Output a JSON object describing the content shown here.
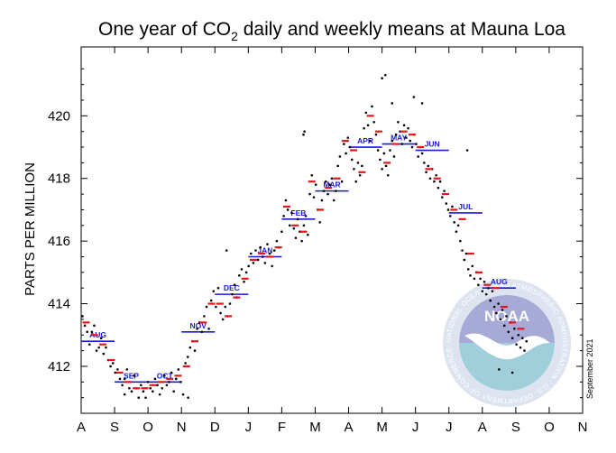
{
  "chart_data": {
    "type": "scatter",
    "title": "One year of CO",
    "title_subscript": "2",
    "title_suffix": " daily and weekly means at Mauna Loa",
    "ylabel": "PARTS PER MILLION",
    "xlabel": "",
    "ylim": [
      410.5,
      422.2
    ],
    "yticks": [
      412,
      414,
      416,
      418,
      420
    ],
    "x_range_months": [
      0,
      15
    ],
    "x_tick_labels": [
      "A",
      "S",
      "O",
      "N",
      "D",
      "J",
      "F",
      "M",
      "A",
      "M",
      "J",
      "J",
      "A",
      "S",
      "O",
      "N"
    ],
    "grid": false,
    "credit": "September 2021",
    "colors": {
      "daily": "#000000",
      "weekly": "#e8141b",
      "monthly": "#1a1adb"
    },
    "logo": {
      "name": "noaa-logo",
      "text": "NOAA",
      "ring_text": "NATIONAL OCEANIC AND ATMOSPHERIC ADMINISTRATION · U.S. DEPARTMENT OF COMMERCE"
    },
    "series": [
      {
        "name": "monthly",
        "style": "blue-horizontal-segment",
        "months": [
          {
            "label": "AUG",
            "x": 0,
            "value": 412.8
          },
          {
            "label": "SEP",
            "x": 1,
            "value": 411.5
          },
          {
            "label": "OCT",
            "x": 2,
            "value": 411.5
          },
          {
            "label": "NOV",
            "x": 3,
            "value": 413.1
          },
          {
            "label": "DEC",
            "x": 4,
            "value": 414.3
          },
          {
            "label": "JAN",
            "x": 5,
            "value": 415.5
          },
          {
            "label": "FEB",
            "x": 6,
            "value": 416.7
          },
          {
            "label": "MAR",
            "x": 7,
            "value": 417.6
          },
          {
            "label": "APR",
            "x": 8,
            "value": 419.0
          },
          {
            "label": "MAY",
            "x": 9,
            "value": 419.1
          },
          {
            "label": "JUN",
            "x": 10,
            "value": 418.9
          },
          {
            "label": "JUL",
            "x": 11,
            "value": 416.9
          },
          {
            "label": "AUG",
            "x": 12,
            "value": 414.5
          }
        ]
      },
      {
        "name": "weekly",
        "style": "red-dash",
        "points": [
          [
            0.15,
            413.4
          ],
          [
            0.4,
            413.0
          ],
          [
            0.65,
            412.7
          ],
          [
            0.9,
            412.2
          ],
          [
            1.15,
            411.8
          ],
          [
            1.4,
            411.5
          ],
          [
            1.65,
            411.3
          ],
          [
            1.9,
            411.3
          ],
          [
            2.15,
            411.4
          ],
          [
            2.4,
            411.5
          ],
          [
            2.65,
            411.6
          ],
          [
            2.9,
            411.7
          ],
          [
            3.15,
            412.0
          ],
          [
            3.4,
            412.8
          ],
          [
            3.65,
            413.4
          ],
          [
            3.9,
            414.0
          ],
          [
            4.15,
            414.0
          ],
          [
            4.4,
            413.6
          ],
          [
            4.65,
            414.2
          ],
          [
            4.9,
            414.8
          ],
          [
            5.15,
            415.4
          ],
          [
            5.4,
            415.6
          ],
          [
            5.65,
            415.5
          ],
          [
            5.9,
            415.8
          ],
          [
            6.15,
            417.1
          ],
          [
            6.4,
            416.5
          ],
          [
            6.65,
            416.3
          ],
          [
            6.9,
            417.9
          ],
          [
            7.15,
            417.0
          ],
          [
            7.4,
            417.7
          ],
          [
            7.65,
            418.0
          ],
          [
            7.9,
            419.2
          ],
          [
            8.15,
            418.9
          ],
          [
            8.4,
            418.2
          ],
          [
            8.65,
            420.0
          ],
          [
            8.9,
            419.5
          ],
          [
            9.15,
            418.5
          ],
          [
            9.4,
            419.1
          ],
          [
            9.65,
            419.5
          ],
          [
            9.9,
            419.4
          ],
          [
            10.15,
            419.0
          ],
          [
            10.4,
            418.3
          ],
          [
            10.65,
            418.0
          ],
          [
            10.9,
            417.5
          ],
          [
            11.15,
            417.0
          ],
          [
            11.4,
            416.7
          ],
          [
            11.65,
            415.6
          ],
          [
            11.9,
            415.0
          ],
          [
            12.15,
            414.6
          ],
          [
            12.4,
            414.5
          ],
          [
            12.65,
            413.9
          ],
          [
            12.9,
            413.4
          ],
          [
            13.15,
            413.2
          ]
        ]
      },
      {
        "name": "daily",
        "style": "black-dot",
        "points": [
          [
            0.04,
            413.6
          ],
          [
            0.11,
            413.3
          ],
          [
            0.18,
            413.1
          ],
          [
            0.25,
            412.7
          ],
          [
            0.32,
            413.1
          ],
          [
            0.39,
            413.3
          ],
          [
            0.46,
            412.5
          ],
          [
            0.53,
            412.6
          ],
          [
            0.6,
            412.9
          ],
          [
            0.67,
            412.4
          ],
          [
            0.74,
            412.6
          ],
          [
            0.81,
            412.2
          ],
          [
            0.88,
            412.0
          ],
          [
            0.95,
            412.1
          ],
          [
            1.02,
            411.8
          ],
          [
            1.09,
            411.9
          ],
          [
            1.16,
            411.6
          ],
          [
            1.23,
            411.4
          ],
          [
            1.3,
            411.6
          ],
          [
            1.37,
            411.9
          ],
          [
            1.44,
            411.3
          ],
          [
            1.51,
            411.2
          ],
          [
            1.58,
            411.7
          ],
          [
            1.65,
            411.3
          ],
          [
            1.72,
            411.0
          ],
          [
            1.79,
            411.4
          ],
          [
            1.86,
            411.2
          ],
          [
            1.93,
            411.0
          ],
          [
            2.0,
            411.5
          ],
          [
            2.07,
            411.3
          ],
          [
            2.14,
            411.2
          ],
          [
            2.21,
            411.6
          ],
          [
            2.28,
            411.4
          ],
          [
            2.35,
            411.1
          ],
          [
            2.42,
            411.3
          ],
          [
            2.49,
            411.7
          ],
          [
            2.56,
            411.4
          ],
          [
            2.63,
            411.5
          ],
          [
            2.7,
            411.8
          ],
          [
            2.77,
            411.2
          ],
          [
            2.84,
            411.6
          ],
          [
            2.91,
            411.9
          ],
          [
            2.98,
            411.5
          ],
          [
            3.05,
            411.1
          ],
          [
            3.12,
            412.1
          ],
          [
            3.19,
            412.3
          ],
          [
            3.26,
            412.6
          ],
          [
            3.33,
            412.8
          ],
          [
            3.4,
            412.5
          ],
          [
            3.47,
            413.2
          ],
          [
            3.54,
            413.4
          ],
          [
            3.61,
            413.1
          ],
          [
            3.68,
            413.6
          ],
          [
            3.75,
            413.9
          ],
          [
            3.82,
            413.2
          ],
          [
            3.89,
            414.1
          ],
          [
            3.96,
            414.4
          ],
          [
            4.03,
            413.9
          ],
          [
            4.1,
            414.5
          ],
          [
            4.17,
            413.7
          ],
          [
            4.24,
            413.5
          ],
          [
            4.31,
            413.9
          ],
          [
            4.38,
            413.6
          ],
          [
            4.45,
            414.0
          ],
          [
            4.52,
            414.3
          ],
          [
            4.59,
            414.6
          ],
          [
            4.66,
            414.2
          ],
          [
            4.73,
            414.9
          ],
          [
            4.8,
            415.1
          ],
          [
            4.87,
            414.7
          ],
          [
            4.94,
            415.0
          ],
          [
            5.01,
            415.2
          ],
          [
            5.08,
            415.6
          ],
          [
            5.15,
            415.3
          ],
          [
            5.22,
            415.7
          ],
          [
            5.29,
            415.4
          ],
          [
            5.36,
            415.8
          ],
          [
            5.43,
            415.5
          ],
          [
            5.5,
            415.3
          ],
          [
            5.57,
            415.9
          ],
          [
            5.64,
            415.6
          ],
          [
            5.71,
            415.2
          ],
          [
            5.78,
            415.7
          ],
          [
            5.85,
            416.0
          ],
          [
            5.92,
            415.8
          ],
          [
            6.0,
            416.3
          ],
          [
            6.06,
            416.8
          ],
          [
            6.12,
            417.3
          ],
          [
            6.18,
            417.0
          ],
          [
            6.24,
            416.5
          ],
          [
            6.3,
            416.9
          ],
          [
            6.36,
            416.4
          ],
          [
            6.42,
            416.1
          ],
          [
            6.48,
            416.7
          ],
          [
            6.54,
            416.3
          ],
          [
            6.6,
            416.0
          ],
          [
            6.66,
            416.5
          ],
          [
            6.72,
            416.8
          ],
          [
            6.78,
            416.2
          ],
          [
            6.84,
            417.5
          ],
          [
            6.9,
            418.1
          ],
          [
            6.96,
            417.4
          ],
          [
            7.02,
            417.8
          ],
          [
            7.08,
            417.0
          ],
          [
            7.14,
            416.6
          ],
          [
            7.2,
            417.3
          ],
          [
            7.26,
            417.6
          ],
          [
            7.32,
            417.9
          ],
          [
            7.38,
            417.5
          ],
          [
            7.44,
            417.8
          ],
          [
            7.5,
            418.0
          ],
          [
            7.56,
            417.3
          ],
          [
            7.62,
            417.6
          ],
          [
            7.68,
            418.4
          ],
          [
            7.74,
            418.7
          ],
          [
            7.8,
            417.9
          ],
          [
            7.86,
            419.1
          ],
          [
            7.92,
            418.8
          ],
          [
            7.98,
            419.3
          ],
          [
            8.04,
            419.0
          ],
          [
            8.1,
            418.6
          ],
          [
            8.16,
            418.3
          ],
          [
            8.22,
            417.9
          ],
          [
            8.28,
            418.5
          ],
          [
            8.34,
            418.1
          ],
          [
            8.4,
            418.4
          ],
          [
            8.46,
            419.6
          ],
          [
            8.52,
            420.1
          ],
          [
            8.58,
            419.7
          ],
          [
            8.64,
            419.2
          ],
          [
            8.7,
            420.3
          ],
          [
            8.76,
            419.8
          ],
          [
            8.82,
            419.4
          ],
          [
            8.88,
            418.9
          ],
          [
            8.94,
            418.6
          ],
          [
            9.0,
            418.3
          ],
          [
            9.06,
            418.8
          ],
          [
            9.12,
            418.4
          ],
          [
            9.18,
            418.1
          ],
          [
            9.24,
            418.9
          ],
          [
            9.3,
            419.2
          ],
          [
            9.36,
            418.7
          ],
          [
            9.42,
            419.4
          ],
          [
            9.48,
            419.8
          ],
          [
            9.54,
            419.5
          ],
          [
            9.6,
            419.1
          ],
          [
            9.66,
            419.7
          ],
          [
            9.72,
            419.3
          ],
          [
            9.78,
            419.6
          ],
          [
            9.84,
            419.2
          ],
          [
            9.9,
            419.0
          ],
          [
            9.96,
            419.4
          ],
          [
            10.02,
            419.1
          ],
          [
            10.08,
            418.7
          ],
          [
            10.14,
            419.0
          ],
          [
            10.2,
            418.8
          ],
          [
            10.26,
            418.5
          ],
          [
            10.32,
            418.2
          ],
          [
            10.38,
            418.4
          ],
          [
            10.44,
            418.0
          ],
          [
            10.5,
            418.3
          ],
          [
            10.56,
            417.9
          ],
          [
            10.62,
            418.1
          ],
          [
            10.68,
            417.7
          ],
          [
            10.74,
            417.9
          ],
          [
            10.8,
            417.4
          ],
          [
            10.86,
            417.6
          ],
          [
            10.92,
            417.2
          ],
          [
            10.98,
            417.0
          ],
          [
            11.04,
            416.8
          ],
          [
            11.1,
            417.1
          ],
          [
            11.16,
            416.6
          ],
          [
            11.22,
            416.3
          ],
          [
            11.28,
            416.5
          ],
          [
            11.34,
            416.0
          ],
          [
            11.4,
            415.7
          ],
          [
            11.46,
            415.4
          ],
          [
            11.52,
            415.6
          ],
          [
            11.58,
            415.1
          ],
          [
            11.64,
            414.9
          ],
          [
            11.7,
            415.2
          ],
          [
            11.76,
            414.8
          ],
          [
            11.82,
            415.0
          ],
          [
            11.88,
            414.6
          ],
          [
            11.94,
            414.8
          ],
          [
            12.0,
            414.4
          ],
          [
            12.06,
            414.7
          ],
          [
            12.12,
            414.3
          ],
          [
            12.18,
            414.5
          ],
          [
            12.24,
            414.1
          ],
          [
            12.3,
            414.4
          ],
          [
            12.36,
            413.9
          ],
          [
            12.42,
            413.7
          ],
          [
            12.48,
            414.0
          ],
          [
            12.54,
            413.5
          ],
          [
            12.6,
            413.8
          ],
          [
            12.66,
            413.3
          ],
          [
            12.72,
            413.6
          ],
          [
            12.78,
            413.1
          ],
          [
            12.84,
            413.4
          ],
          [
            12.9,
            412.9
          ],
          [
            12.96,
            413.2
          ],
          [
            13.02,
            412.7
          ],
          [
            13.08,
            413.0
          ],
          [
            13.14,
            412.6
          ],
          [
            13.2,
            412.9
          ],
          [
            13.26,
            412.5
          ],
          [
            13.32,
            412.8
          ],
          [
            9.0,
            421.2
          ],
          [
            9.1,
            421.3
          ],
          [
            9.95,
            420.6
          ],
          [
            10.2,
            420.4
          ],
          [
            9.3,
            420.4
          ],
          [
            6.65,
            419.4
          ],
          [
            6.68,
            419.5
          ],
          [
            4.35,
            415.7
          ],
          [
            11.55,
            418.9
          ],
          [
            12.9,
            411.8
          ],
          [
            12.5,
            411.9
          ],
          [
            3.2,
            411.0
          ],
          [
            1.3,
            411.1
          ]
        ]
      }
    ]
  }
}
